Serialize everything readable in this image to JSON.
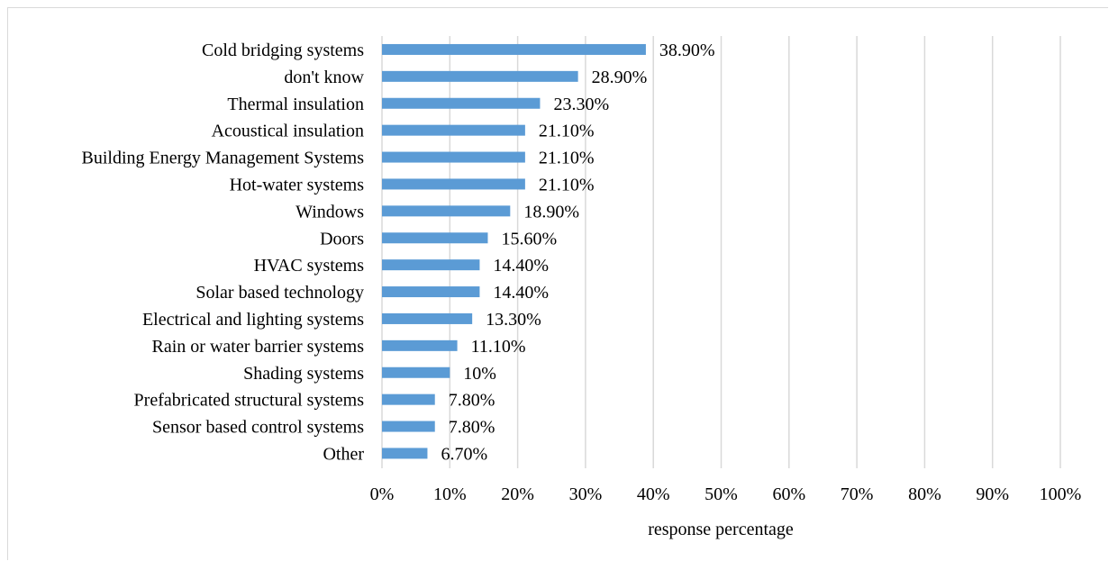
{
  "chart_data": {
    "type": "bar",
    "orientation": "horizontal",
    "categories": [
      "Cold bridging systems",
      "don't know",
      "Thermal insulation",
      "Acoustical insulation",
      "Building Energy Management Systems",
      "Hot-water systems",
      "Windows",
      "Doors",
      "HVAC systems",
      "Solar based technology",
      "Electrical and lighting systems",
      "Rain or water barrier systems",
      "Shading systems",
      "Prefabricated structural systems",
      "Sensor based control systems",
      "Other"
    ],
    "values": [
      38.9,
      28.9,
      23.3,
      21.1,
      21.1,
      21.1,
      18.9,
      15.6,
      14.4,
      14.4,
      13.3,
      11.1,
      10,
      7.8,
      7.8,
      6.7
    ],
    "data_labels": [
      "38.90%",
      "28.90%",
      "23.30%",
      "21.10%",
      "21.10%",
      "21.10%",
      "18.90%",
      "15.60%",
      "14.40%",
      "14.40%",
      "13.30%",
      "11.10%",
      "10%",
      "7.80%",
      "7.80%",
      "6.70%"
    ],
    "x_ticks": [
      "0%",
      "10%",
      "20%",
      "30%",
      "40%",
      "50%",
      "60%",
      "70%",
      "80%",
      "90%",
      "100%"
    ],
    "xlabel": "response percentage",
    "xlim": [
      0,
      100
    ],
    "grid": "vertical",
    "bar_color": "#5b9bd5",
    "grid_color": "#d9d9d9"
  }
}
